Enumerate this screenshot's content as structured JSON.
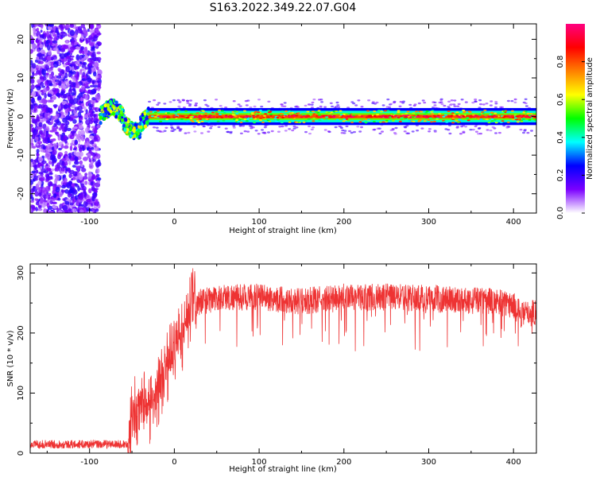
{
  "title": "S163.2022.349.22.07.G04",
  "chart_data": [
    {
      "type": "heatmap",
      "xlabel": "Height of straight line (km)",
      "ylabel": "Frequency (Hz)",
      "xlim": [
        -170,
        427
      ],
      "ylim": [
        -25,
        24
      ],
      "x_ticks": [
        -100,
        0,
        100,
        200,
        300,
        400
      ],
      "y_ticks": [
        -20,
        -10,
        0,
        10,
        20
      ],
      "colorbar": {
        "label": "Normalized spectral amplitude",
        "range": [
          0,
          1
        ],
        "ticks": [
          0.0,
          0.2,
          0.4,
          0.6,
          0.8
        ],
        "colormap": [
          "#ffffff",
          "#7b00ff",
          "#0000ff",
          "#00ffff",
          "#00ff00",
          "#ffff00",
          "#ff8000",
          "#ff0000",
          "#ff0080"
        ]
      },
      "regions": [
        {
          "x_range": [
            -170,
            -88
          ],
          "y_range": [
            -25,
            24
          ],
          "amplitude": 0.25
        },
        {
          "x_range": [
            -88,
            -30
          ],
          "y_range": [
            -5,
            5
          ],
          "amplitude": 0.6
        },
        {
          "x_range": [
            -30,
            427
          ],
          "y_range": [
            -2,
            2
          ],
          "amplitude": 0.9
        }
      ]
    },
    {
      "type": "line",
      "xlabel": "Height of straight line (km)",
      "ylabel": "SNR (10 * v/v)",
      "xlim": [
        -170,
        427
      ],
      "ylim": [
        0,
        315
      ],
      "x_ticks": [
        -100,
        0,
        100,
        200,
        300,
        400
      ],
      "y_ticks": [
        0,
        100,
        200,
        300
      ],
      "series": [
        {
          "color": "#ee3333",
          "envelope": [
            [
              -170,
              12
            ],
            [
              -100,
              12
            ],
            [
              -55,
              12
            ],
            [
              -50,
              60
            ],
            [
              -40,
              90
            ],
            [
              -30,
              70
            ],
            [
              -25,
              90
            ],
            [
              -10,
              140
            ],
            [
              0,
              170
            ],
            [
              10,
              200
            ],
            [
              20,
              240
            ],
            [
              30,
              255
            ],
            [
              60,
              262
            ],
            [
              100,
              262
            ],
            [
              150,
              255
            ],
            [
              200,
              262
            ],
            [
              250,
              262
            ],
            [
              300,
              260
            ],
            [
              350,
              258
            ],
            [
              380,
              255
            ],
            [
              400,
              248
            ],
            [
              410,
              232
            ],
            [
              427,
              238
            ]
          ]
        }
      ]
    }
  ]
}
